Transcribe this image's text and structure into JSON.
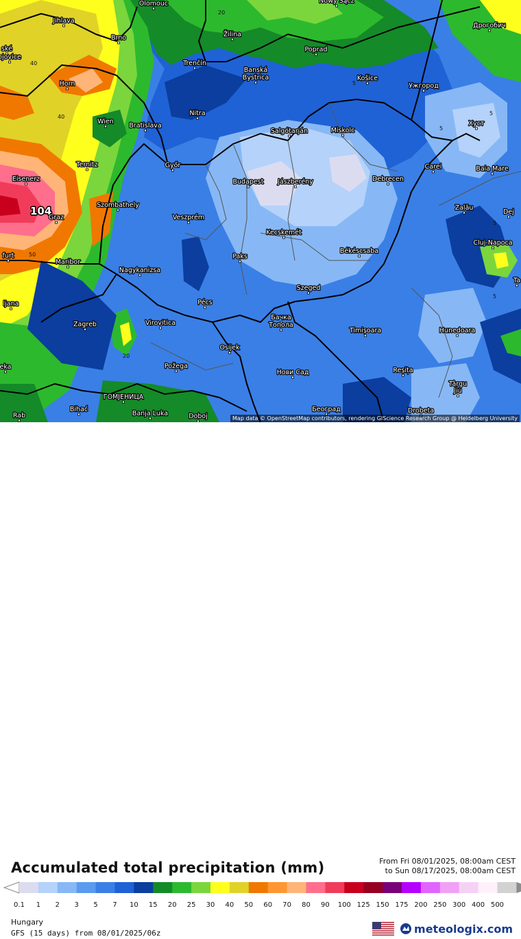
{
  "map": {
    "cities": [
      {
        "name": "Olomouc"
      },
      {
        "name": "Nowy Sącz"
      },
      {
        "name": "Дрогобич"
      },
      {
        "name": "Jihlava"
      },
      {
        "name": "Žilina"
      },
      {
        "name": "Brno"
      },
      {
        "name": "Poprad"
      },
      {
        "name": "ské"
      },
      {
        "name": "ojovice"
      },
      {
        "name": "Banská"
      },
      {
        "name": "Bystrica"
      },
      {
        "name": "Horn"
      },
      {
        "name": "Trenčín"
      },
      {
        "name": "Košice"
      },
      {
        "name": "Ужгород"
      },
      {
        "name": "Nitra"
      },
      {
        "name": "Wien"
      },
      {
        "name": "Bratislava"
      },
      {
        "name": "Salgótarján"
      },
      {
        "name": "Miskolc"
      },
      {
        "name": "Хуст"
      },
      {
        "name": "Ternitz"
      },
      {
        "name": "Győr"
      },
      {
        "name": "Carei"
      },
      {
        "name": "Baia Mare"
      },
      {
        "name": "Eisenerz"
      },
      {
        "name": "Budapest"
      },
      {
        "name": "Jászberény"
      },
      {
        "name": "Debrecen"
      },
      {
        "name": "Szombathely"
      },
      {
        "name": "Zalău"
      },
      {
        "name": "Graz"
      },
      {
        "name": "Veszprém"
      },
      {
        "name": "Dej"
      },
      {
        "name": "Kecskemét"
      },
      {
        "name": "Cluj-Napoca"
      },
      {
        "name": "furt"
      },
      {
        "name": "Paks"
      },
      {
        "name": "Békéscsaba"
      },
      {
        "name": "Maribor"
      },
      {
        "name": "Nagykanizsa"
      },
      {
        "name": "Szeged"
      },
      {
        "name": "Pécs"
      },
      {
        "name": "ljana"
      },
      {
        "name": "Бачка"
      },
      {
        "name": "Топола"
      },
      {
        "name": "Virovitica"
      },
      {
        "name": "Zagreb"
      },
      {
        "name": "Timișoara"
      },
      {
        "name": "Hunedoara"
      },
      {
        "name": "Osijek"
      },
      {
        "name": "Požega"
      },
      {
        "name": "Нови Сад"
      },
      {
        "name": "Reșița"
      },
      {
        "name": "Târgu"
      },
      {
        "name": "Jiu"
      },
      {
        "name": "eka"
      },
      {
        "name": "ГОМЈЕНИЦА"
      },
      {
        "name": "Rab"
      },
      {
        "name": "Bihać"
      },
      {
        "name": "Banja Luka"
      },
      {
        "name": "Doboj"
      },
      {
        "name": "Београд"
      },
      {
        "name": "Drobeta"
      },
      {
        "name": "Ta"
      }
    ],
    "contour_labels": [
      "20",
      "40",
      "40",
      "5",
      "5",
      "5",
      "5",
      "50",
      "20",
      "5"
    ],
    "max_value": "104",
    "attribution": "Map data © OpenStreetMap contributors, rendering GIScience Research Group @ Heidelberg University"
  },
  "footer": {
    "title": "Accumulated total precipitation (mm)",
    "period_from": "From Fri 08/01/2025, 08:00am CEST",
    "period_to": "to Sun 08/17/2025, 08:00am CEST",
    "region": "Hungary",
    "model": "GFS (15 days) from 08/01/2025/06z",
    "brand": "meteologix.com"
  },
  "legend": {
    "unit": "mm",
    "labels": [
      "0.1",
      "1",
      "2",
      "3",
      "5",
      "7",
      "10",
      "15",
      "20",
      "25",
      "30",
      "40",
      "50",
      "60",
      "70",
      "80",
      "90",
      "100",
      "125",
      "150",
      "175",
      "200",
      "250",
      "300",
      "400",
      "500"
    ],
    "colors": [
      "#dcdcf0",
      "#b4d2fa",
      "#87b8f5",
      "#5a9bf0",
      "#3a7fe6",
      "#1f62d6",
      "#0b3e9e",
      "#148a28",
      "#2db92d",
      "#7ad63c",
      "#ffff1e",
      "#e1d228",
      "#f07800",
      "#ff9632",
      "#ffb478",
      "#ff6e8c",
      "#f03c5a",
      "#c8001e",
      "#96001e",
      "#780078",
      "#b400ff",
      "#e164ff",
      "#f0a0f5",
      "#f5d2f5",
      "#fff0fa",
      "#d2d2d2"
    ]
  },
  "colors": {
    "border": "#000000",
    "minor_border": "#555555",
    "text": "#111111",
    "brand": "#1a3b8c"
  }
}
